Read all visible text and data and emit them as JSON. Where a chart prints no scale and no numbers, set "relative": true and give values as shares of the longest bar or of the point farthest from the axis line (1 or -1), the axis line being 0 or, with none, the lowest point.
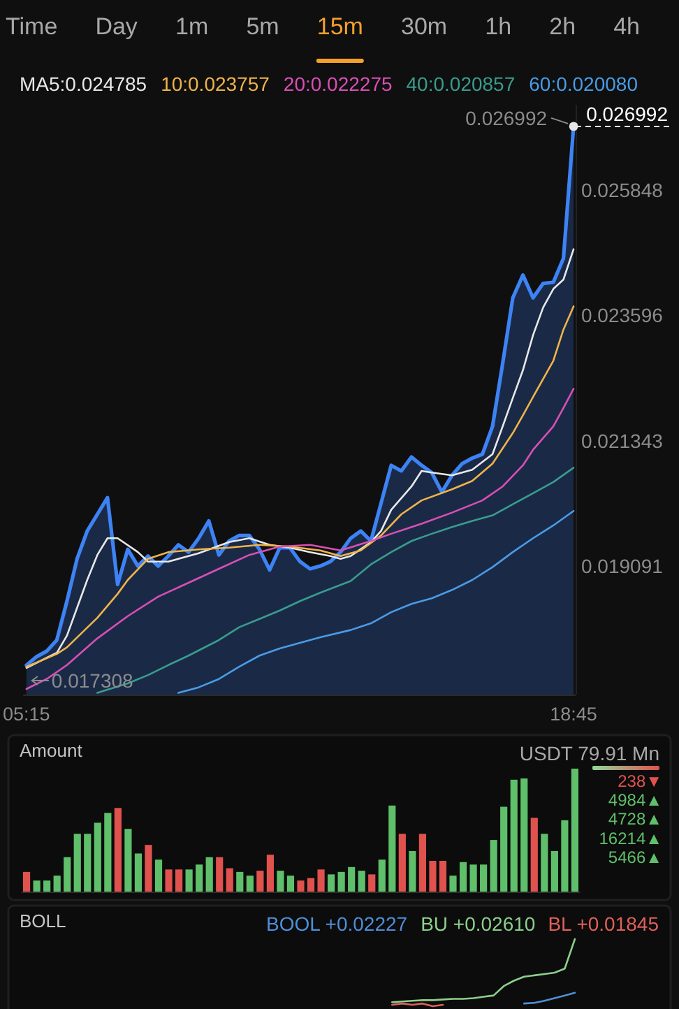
{
  "chart_data": [
    {
      "type": "other",
      "categories": [
        "Time",
        "Day",
        "1m",
        "5m",
        "15m",
        "30m",
        "1h",
        "2h",
        "4h"
      ],
      "colors": [
        "#a8a8a8",
        "#a8a8a8",
        "#a8a8a8",
        "#a8a8a8",
        "#f5a02a",
        "#a8a8a8",
        "#a8a8a8",
        "#a8a8a8",
        "#a8a8a8"
      ]
    },
    {
      "type": "line",
      "legend": "top",
      "xlim": [
        5.17,
        18.8
      ],
      "xticks": [
        {
          "value": 5.25,
          "label": "05:15"
        },
        {
          "value": 18.75,
          "label": "18:45"
        }
      ],
      "ylim": [
        0.01678,
        0.02738
      ],
      "yticks": [
        0.025848,
        0.023596,
        0.021343,
        0.019091
      ],
      "ref_lines": [
        {
          "axis": "y",
          "value": 0.026992,
          "label": "0.026992",
          "line_style": "dashed",
          "color": "#ffffff"
        }
      ],
      "annotations": [
        {
          "text": "0.026992",
          "x": 18.75,
          "y": 0.026992
        },
        {
          "text": "0.017308",
          "x": 5.25,
          "y": 0.017308
        }
      ],
      "series": [
        {
          "type": "area",
          "color": "#3d83f5",
          "x": [
            5.25,
            5.5,
            5.75,
            6,
            6.25,
            6.5,
            6.75,
            7,
            7.25,
            7.5,
            7.75,
            8,
            8.25,
            8.5,
            8.75,
            9,
            9.25,
            9.5,
            9.75,
            10,
            10.25,
            10.5,
            10.75,
            11,
            11.25,
            11.5,
            11.75,
            12,
            12.25,
            12.5,
            12.75,
            13,
            13.25,
            13.5,
            13.75,
            14,
            14.25,
            14.5,
            14.75,
            15,
            15.25,
            15.5,
            15.75,
            16,
            16.25,
            16.5,
            16.75,
            17,
            17.25,
            17.5,
            17.75,
            18,
            18.25,
            18.5,
            18.75
          ],
          "values": [
            0.017308,
            0.01746,
            0.01756,
            0.01776,
            0.01846,
            0.01922,
            0.01972,
            0.02002,
            0.02032,
            0.01876,
            0.01939,
            0.01909,
            0.01927,
            0.01909,
            0.01927,
            0.01947,
            0.01934,
            0.01959,
            0.0199,
            0.01929,
            0.01954,
            0.01964,
            0.01964,
            0.01939,
            0.01902,
            0.01942,
            0.01942,
            0.01917,
            0.01904,
            0.01909,
            0.01917,
            0.01934,
            0.01959,
            0.01972,
            0.01954,
            0.02022,
            0.0209,
            0.0208,
            0.02105,
            0.0209,
            0.02077,
            0.02042,
            0.02072,
            0.02093,
            0.02103,
            0.0211,
            0.0216,
            0.02273,
            0.02391,
            0.02432,
            0.02391,
            0.02417,
            0.02419,
            0.02462,
            0.026992
          ]
        },
        {
          "name": "MA5:0.024785",
          "color": "#e8e8e8",
          "x": [
            5.25,
            6,
            6.25,
            6.5,
            6.75,
            7,
            7.25,
            7.5,
            8,
            8.25,
            8.75,
            9.5,
            10.25,
            10.75,
            11.25,
            11.75,
            12.25,
            12.75,
            13,
            13.25,
            13.75,
            14,
            14.25,
            14.75,
            15,
            15.25,
            15.75,
            16.25,
            16.75,
            17,
            17.25,
            17.5,
            17.75,
            18,
            18.25,
            18.5,
            18.75
          ],
          "values": [
            0.01726,
            0.01753,
            0.01784,
            0.01834,
            0.01884,
            0.01929,
            0.01959,
            0.01959,
            0.01934,
            0.01917,
            0.01917,
            0.01932,
            0.01952,
            0.01959,
            0.01947,
            0.01942,
            0.01934,
            0.01927,
            0.01922,
            0.01927,
            0.01952,
            0.01972,
            0.0201,
            0.02052,
            0.0208,
            0.02077,
            0.02072,
            0.02082,
            0.0211,
            0.0216,
            0.02211,
            0.02261,
            0.02324,
            0.02374,
            0.02407,
            0.02424,
            0.024785
          ]
        },
        {
          "name": "10:0.023757",
          "color": "#f0b44a",
          "x": [
            5.25,
            6,
            6.25,
            7,
            7.5,
            7.75,
            8.25,
            8.75,
            9.5,
            10.25,
            11,
            11.75,
            12.5,
            13,
            13.5,
            14,
            14.5,
            15,
            15.75,
            16.25,
            16.75,
            17.25,
            17.5,
            17.75,
            18.25,
            18.5,
            18.75
          ],
          "values": [
            0.01728,
            0.01751,
            0.01763,
            0.01816,
            0.01859,
            0.01884,
            0.01922,
            0.01934,
            0.01939,
            0.01942,
            0.01947,
            0.01944,
            0.01937,
            0.01927,
            0.01937,
            0.01964,
            0.02002,
            0.02027,
            0.02047,
            0.02062,
            0.02093,
            0.02148,
            0.0218,
            0.02213,
            0.02278,
            0.02334,
            0.023757
          ]
        },
        {
          "name": "20:0.022275",
          "color": "#d94fb5",
          "x": [
            5.25,
            5.75,
            6.25,
            7,
            7.75,
            8.5,
            9.25,
            10,
            10.75,
            11.5,
            12.25,
            13,
            13.75,
            14.25,
            15,
            15.75,
            16.5,
            17,
            17.5,
            17.75,
            18.25,
            18.5,
            18.75
          ],
          "values": [
            0.01688,
            0.01706,
            0.01731,
            0.01779,
            0.01819,
            0.01854,
            0.01879,
            0.01904,
            0.01929,
            0.01944,
            0.01947,
            0.01937,
            0.01954,
            0.01967,
            0.01985,
            0.02005,
            0.02027,
            0.02052,
            0.0209,
            0.02118,
            0.0216,
            0.02193,
            0.022275
          ]
        },
        {
          "name": "40:0.020857",
          "color": "#3a9c8e",
          "x": [
            7,
            7.75,
            8.25,
            8.75,
            9.25,
            10,
            10.5,
            11,
            11.5,
            12,
            12.5,
            13.25,
            13.75,
            14.25,
            14.75,
            15.25,
            15.75,
            16.25,
            16.75,
            17.25,
            17.75,
            18.25,
            18.75
          ],
          "values": [
            0.01681,
            0.01698,
            0.01713,
            0.01731,
            0.01748,
            0.01776,
            0.01799,
            0.01814,
            0.01829,
            0.01846,
            0.01861,
            0.01882,
            0.01912,
            0.01934,
            0.01954,
            0.01967,
            0.01979,
            0.0199,
            0.02,
            0.0202,
            0.0204,
            0.0206,
            0.020857
          ]
        },
        {
          "name": "60:0.020080",
          "color": "#4a9be6",
          "x": [
            9,
            9.5,
            10,
            10.5,
            11,
            11.5,
            12,
            12.5,
            13.25,
            13.75,
            14.25,
            14.75,
            15.25,
            15.75,
            16.25,
            16.75,
            17.25,
            17.75,
            18.25,
            18.75
          ],
          "values": [
            0.01681,
            0.01691,
            0.01706,
            0.01728,
            0.01748,
            0.01761,
            0.01771,
            0.01781,
            0.01794,
            0.01806,
            0.01826,
            0.01841,
            0.01851,
            0.01866,
            0.01884,
            0.01907,
            0.01934,
            0.01959,
            0.01982,
            0.02008
          ]
        }
      ]
    },
    {
      "type": "bar",
      "title": "Amount",
      "subtitle": "USDT 79.91 Mn",
      "relative": true,
      "categories": [
        null,
        null,
        null,
        null,
        null,
        null,
        null,
        null,
        null,
        null,
        null,
        null,
        null,
        null,
        null,
        null,
        null,
        null,
        null,
        null,
        null,
        null,
        null,
        null,
        null,
        null,
        null,
        null,
        null,
        null,
        null,
        null,
        null,
        null,
        null,
        null,
        null,
        null,
        null,
        null,
        null,
        null,
        null,
        null,
        null,
        null,
        null,
        null,
        null,
        null,
        null,
        null,
        null,
        null,
        null
      ],
      "values": [
        0.16,
        0.09,
        0.09,
        0.13,
        0.28,
        0.47,
        0.47,
        0.56,
        0.64,
        0.68,
        0.51,
        0.31,
        0.38,
        0.26,
        0.18,
        0.18,
        0.18,
        0.22,
        0.28,
        0.28,
        0.19,
        0.16,
        0.13,
        0.17,
        0.3,
        0.17,
        0.13,
        0.09,
        0.11,
        0.18,
        0.14,
        0.16,
        0.2,
        0.17,
        0.14,
        0.26,
        0.7,
        0.47,
        0.33,
        0.47,
        0.25,
        0.25,
        0.13,
        0.24,
        0.22,
        0.22,
        0.42,
        0.69,
        0.91,
        0.92,
        0.6,
        0.47,
        0.33,
        0.58,
        1
      ],
      "colors": [
        "#e0524e",
        "#5fbf6a",
        "#5fbf6a",
        "#5fbf6a",
        "#5fbf6a",
        "#5fbf6a",
        "#5fbf6a",
        "#5fbf6a",
        "#5fbf6a",
        "#e0524e",
        "#5fbf6a",
        "#5fbf6a",
        "#e0524e",
        "#5fbf6a",
        "#e0524e",
        "#e0524e",
        "#5fbf6a",
        "#5fbf6a",
        "#5fbf6a",
        "#e0524e",
        "#e0524e",
        "#5fbf6a",
        "#5fbf6a",
        "#e0524e",
        "#e0524e",
        "#5fbf6a",
        "#5fbf6a",
        "#e0524e",
        "#e0524e",
        "#e0524e",
        "#5fbf6a",
        "#5fbf6a",
        "#5fbf6a",
        "#5fbf6a",
        "#e0524e",
        "#5fbf6a",
        "#5fbf6a",
        "#e0524e",
        "#5fbf6a",
        "#e0524e",
        "#e0524e",
        "#e0524e",
        "#5fbf6a",
        "#5fbf6a",
        "#5fbf6a",
        "#5fbf6a",
        "#5fbf6a",
        "#5fbf6a",
        "#5fbf6a",
        "#5fbf6a",
        "#e0524e",
        "#5fbf6a",
        "#5fbf6a",
        "#5fbf6a",
        "#5fbf6a"
      ]
    },
    {
      "type": "other",
      "categories": [
        "238▼",
        "4984▲",
        "4728▲",
        "16214▲",
        "5466▲"
      ],
      "colors": [
        "#e0524e",
        "#5fbf6a",
        "#5fbf6a",
        "#5fbf6a",
        "#5fbf6a"
      ]
    },
    {
      "type": "line",
      "title": "BOLL",
      "relative": true,
      "legend": "top right",
      "categories": [
        null,
        null,
        null,
        null,
        null,
        null,
        null,
        null,
        null,
        null,
        null,
        null,
        null,
        null,
        null,
        null,
        null,
        null,
        null,
        null,
        null,
        null,
        null,
        null,
        null,
        null,
        null,
        null,
        null,
        null,
        null,
        null,
        null,
        null,
        null,
        null,
        null,
        null,
        null,
        null,
        null,
        null,
        null,
        null,
        null,
        null,
        null,
        null,
        null,
        null,
        null,
        null,
        null,
        null,
        null
      ],
      "series": [
        {
          "name": "BOOL +0.02227",
          "color": "#4f8fd8",
          "values": [
            null,
            null,
            null,
            null,
            null,
            null,
            null,
            null,
            null,
            null,
            null,
            null,
            null,
            null,
            null,
            null,
            null,
            null,
            null,
            null,
            null,
            null,
            null,
            null,
            null,
            null,
            null,
            null,
            null,
            null,
            null,
            null,
            null,
            null,
            null,
            null,
            null,
            null,
            null,
            null,
            null,
            null,
            null,
            null,
            null,
            null,
            null,
            null,
            null,
            0.04,
            0.05,
            0.08,
            0.12,
            0.16,
            0.2
          ]
        },
        {
          "name": "BU +0.02610",
          "color": "#8ccf8c",
          "values": [
            null,
            null,
            null,
            null,
            null,
            null,
            null,
            null,
            null,
            null,
            null,
            null,
            null,
            null,
            null,
            null,
            null,
            null,
            null,
            null,
            null,
            null,
            null,
            null,
            null,
            null,
            null,
            null,
            null,
            null,
            null,
            null,
            null,
            null,
            null,
            null,
            0.06,
            0.07,
            0.08,
            0.09,
            0.09,
            0.1,
            0.11,
            0.11,
            0.12,
            0.14,
            0.16,
            0.3,
            0.38,
            0.44,
            0.46,
            0.48,
            0.5,
            0.56,
            1
          ]
        },
        {
          "name": "BL +0.01845",
          "color": "#e0605a",
          "values": [
            null,
            null,
            null,
            null,
            null,
            null,
            null,
            null,
            null,
            null,
            null,
            null,
            null,
            null,
            null,
            null,
            null,
            null,
            null,
            null,
            null,
            null,
            null,
            null,
            null,
            null,
            null,
            null,
            null,
            null,
            null,
            null,
            null,
            null,
            null,
            null,
            0.02,
            0.04,
            0.02,
            0.04,
            0,
            0.02,
            null,
            null,
            null,
            null,
            null,
            null,
            null,
            null,
            null,
            null,
            null,
            null,
            null
          ]
        }
      ]
    }
  ]
}
